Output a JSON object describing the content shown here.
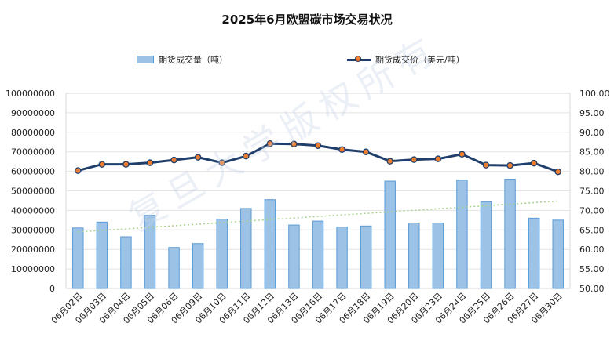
{
  "chart_data": {
    "type": "bar",
    "title": "2025年6月欧盟碳市场交易状况",
    "categories": [
      "06月02日",
      "06月03日",
      "06月04日",
      "06月05日",
      "06月06日",
      "06月09日",
      "06月10日",
      "06月11日",
      "06月12日",
      "06月13日",
      "06月16日",
      "06月17日",
      "06月18日",
      "06月19日",
      "06月20日",
      "06月23日",
      "06月24日",
      "06月25日",
      "06月26日",
      "06月27日",
      "06月30日"
    ],
    "series": [
      {
        "name": "期货成交量（吨）",
        "type": "bar",
        "axis": "left",
        "color": "#9cc3e6",
        "values": [
          31000000,
          34000000,
          26500000,
          37500000,
          21000000,
          23000000,
          35500000,
          41000000,
          45500000,
          32500000,
          34500000,
          31500000,
          32000000,
          55000000,
          33500000,
          33500000,
          55500000,
          44500000,
          56000000,
          36000000,
          35000000
        ]
      },
      {
        "name": "期货成交价（美元/吨）",
        "type": "line",
        "axis": "right",
        "color": "#1f3e6b",
        "marker_color": "#ed7d31",
        "values": [
          80.2,
          81.8,
          81.8,
          82.2,
          82.9,
          83.6,
          82.2,
          83.9,
          87.1,
          87.0,
          86.6,
          85.6,
          85.0,
          82.6,
          83.0,
          83.2,
          84.4,
          81.6,
          81.5,
          82.1,
          79.9
        ]
      }
    ],
    "trendline": {
      "series": "期货成交量（吨）",
      "style": "dotted",
      "color": "#a9d18e"
    },
    "y_left": {
      "min": 0,
      "max": 100000000,
      "step": 10000000,
      "tick_labels": [
        "0",
        "10000000",
        "20000000",
        "30000000",
        "40000000",
        "50000000",
        "60000000",
        "70000000",
        "80000000",
        "90000000",
        "100000000"
      ]
    },
    "y_right": {
      "min": 50,
      "max": 100,
      "step": 5,
      "tick_labels": [
        "50.00",
        "55.00",
        "60.00",
        "65.00",
        "70.00",
        "75.00",
        "80.00",
        "85.00",
        "90.00",
        "95.00",
        "100.00"
      ]
    },
    "grid": true,
    "legend_position": "top"
  },
  "watermark": "复旦大学版权所有"
}
